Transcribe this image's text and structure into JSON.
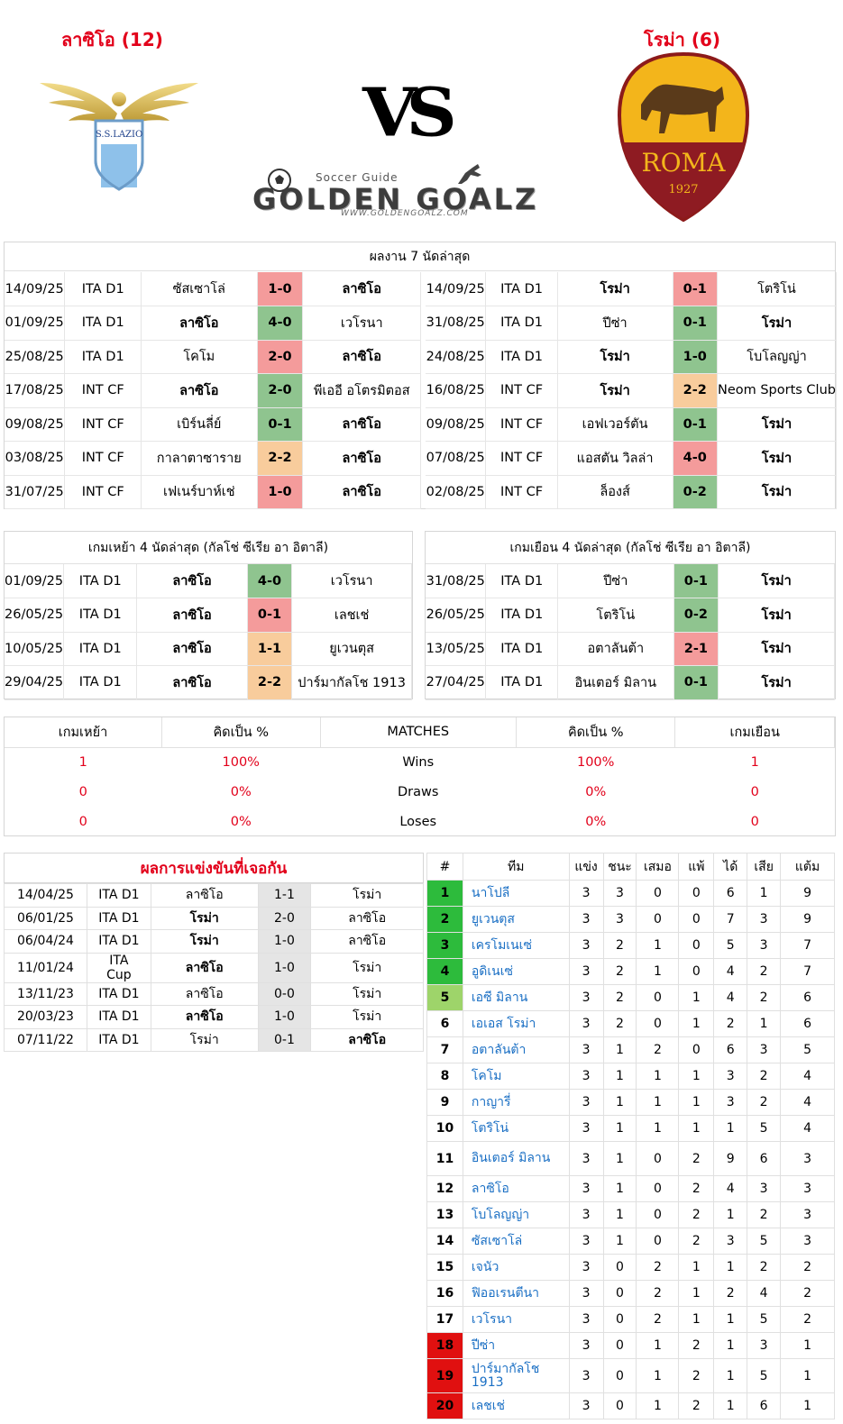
{
  "home": {
    "title": "ลาซิโอ (12)",
    "logo_text": "S.S.LAZIO"
  },
  "away": {
    "title": "โรม่า (6)",
    "logo_text": "ROMA",
    "logo_year": "1927"
  },
  "vs": "VS",
  "brand": {
    "top": "Soccer Guide",
    "main": "GOLDEN GOALZ",
    "url": "WWW.GOLDENGOALZ.COM"
  },
  "last7": {
    "title": "ผลงาน 7 นัดล่าสุด",
    "home_rows": [
      {
        "date": "14/09/25",
        "comp": "ITA D1",
        "home": "ซัสเซาโล่",
        "score": "1-0",
        "away": "ลาซิโอ",
        "res": "L",
        "bold": "away"
      },
      {
        "date": "01/09/25",
        "comp": "ITA D1",
        "home": "ลาซิโอ",
        "score": "4-0",
        "away": "เวโรนา",
        "res": "W",
        "bold": "home"
      },
      {
        "date": "25/08/25",
        "comp": "ITA D1",
        "home": "โคโม",
        "score": "2-0",
        "away": "ลาซิโอ",
        "res": "L",
        "bold": "away"
      },
      {
        "date": "17/08/25",
        "comp": "INT CF",
        "home": "ลาซิโอ",
        "score": "2-0",
        "away": "พีเออี อโตรมิตอส",
        "res": "W",
        "bold": "home"
      },
      {
        "date": "09/08/25",
        "comp": "INT CF",
        "home": "เบิร์นลี่ย์",
        "score": "0-1",
        "away": "ลาซิโอ",
        "res": "W",
        "bold": "away"
      },
      {
        "date": "03/08/25",
        "comp": "INT CF",
        "home": "กาลาตาซาราย",
        "score": "2-2",
        "away": "ลาซิโอ",
        "res": "D",
        "bold": "away"
      },
      {
        "date": "31/07/25",
        "comp": "INT CF",
        "home": "เฟเนร์บาห์เช่",
        "score": "1-0",
        "away": "ลาซิโอ",
        "res": "L",
        "bold": "away"
      }
    ],
    "away_rows": [
      {
        "date": "14/09/25",
        "comp": "ITA D1",
        "home": "โรม่า",
        "score": "0-1",
        "away": "โตริโน่",
        "res": "L",
        "bold": "home"
      },
      {
        "date": "31/08/25",
        "comp": "ITA D1",
        "home": "ปีซ่า",
        "score": "0-1",
        "away": "โรม่า",
        "res": "W",
        "bold": "away"
      },
      {
        "date": "24/08/25",
        "comp": "ITA D1",
        "home": "โรม่า",
        "score": "1-0",
        "away": "โบโลญญ่า",
        "res": "W",
        "bold": "home"
      },
      {
        "date": "16/08/25",
        "comp": "INT CF",
        "home": "โรม่า",
        "score": "2-2",
        "away": "Neom Sports Club",
        "res": "D",
        "bold": "home"
      },
      {
        "date": "09/08/25",
        "comp": "INT CF",
        "home": "เอฟเวอร์ตัน",
        "score": "0-1",
        "away": "โรม่า",
        "res": "W",
        "bold": "away"
      },
      {
        "date": "07/08/25",
        "comp": "INT CF",
        "home": "แอสตัน วิลล่า",
        "score": "4-0",
        "away": "โรม่า",
        "res": "L",
        "bold": "away"
      },
      {
        "date": "02/08/25",
        "comp": "INT CF",
        "home": "ล็องส์",
        "score": "0-2",
        "away": "โรม่า",
        "res": "W",
        "bold": "away"
      }
    ]
  },
  "homeaway": {
    "home_title": "เกมเหย้า 4 นัดล่าสุด (กัลโช่ ซีเรีย อา อิตาลี)",
    "away_title": "เกมเยือน 4 นัดล่าสุด (กัลโช่ ซีเรีย อา อิตาลี)",
    "home_rows": [
      {
        "date": "01/09/25",
        "comp": "ITA D1",
        "home": "ลาซิโอ",
        "score": "4-0",
        "away": "เวโรนา",
        "res": "W",
        "bold": "home"
      },
      {
        "date": "26/05/25",
        "comp": "ITA D1",
        "home": "ลาซิโอ",
        "score": "0-1",
        "away": "เลชเช่",
        "res": "L",
        "bold": "home"
      },
      {
        "date": "10/05/25",
        "comp": "ITA D1",
        "home": "ลาซิโอ",
        "score": "1-1",
        "away": "ยูเวนตุส",
        "res": "D",
        "bold": "home"
      },
      {
        "date": "29/04/25",
        "comp": "ITA D1",
        "home": "ลาซิโอ",
        "score": "2-2",
        "away": "ปาร์มากัลโช 1913",
        "res": "D",
        "bold": "home"
      }
    ],
    "away_rows": [
      {
        "date": "31/08/25",
        "comp": "ITA D1",
        "home": "ปีซ่า",
        "score": "0-1",
        "away": "โรม่า",
        "res": "W",
        "bold": "away"
      },
      {
        "date": "26/05/25",
        "comp": "ITA D1",
        "home": "โตริโน่",
        "score": "0-2",
        "away": "โรม่า",
        "res": "W",
        "bold": "away"
      },
      {
        "date": "13/05/25",
        "comp": "ITA D1",
        "home": "อตาลันต้า",
        "score": "2-1",
        "away": "โรม่า",
        "res": "L",
        "bold": "away"
      },
      {
        "date": "27/04/25",
        "comp": "ITA D1",
        "home": "อินเตอร์ มิลาน",
        "score": "0-1",
        "away": "โรม่า",
        "res": "W",
        "bold": "away"
      }
    ]
  },
  "summary": {
    "headers": [
      "เกมเหย้า",
      "คิดเป็น %",
      "MATCHES",
      "คิดเป็น %",
      "เกมเยือน"
    ],
    "rows": [
      [
        "1",
        "100%",
        "Wins",
        "100%",
        "1"
      ],
      [
        "0",
        "0%",
        "Draws",
        "0%",
        "0"
      ],
      [
        "0",
        "0%",
        "Loses",
        "0%",
        "0"
      ]
    ]
  },
  "h2h": {
    "title": "ผลการแข่งขันที่เจอกัน",
    "rows": [
      {
        "date": "14/04/25",
        "comp": "ITA D1",
        "home": "ลาซิโอ",
        "score": "1-1",
        "away": "โรม่า",
        "bold": ""
      },
      {
        "date": "06/01/25",
        "comp": "ITA D1",
        "home": "โรม่า",
        "score": "2-0",
        "away": "ลาซิโอ",
        "bold": "home"
      },
      {
        "date": "06/04/24",
        "comp": "ITA D1",
        "home": "โรม่า",
        "score": "1-0",
        "away": "ลาซิโอ",
        "bold": "home"
      },
      {
        "date": "11/01/24",
        "comp": "ITA Cup",
        "home": "ลาซิโอ",
        "score": "1-0",
        "away": "โรม่า",
        "bold": "home"
      },
      {
        "date": "13/11/23",
        "comp": "ITA D1",
        "home": "ลาซิโอ",
        "score": "0-0",
        "away": "โรม่า",
        "bold": ""
      },
      {
        "date": "20/03/23",
        "comp": "ITA D1",
        "home": "ลาซิโอ",
        "score": "1-0",
        "away": "โรม่า",
        "bold": "home"
      },
      {
        "date": "07/11/22",
        "comp": "ITA D1",
        "home": "โรม่า",
        "score": "0-1",
        "away": "ลาซิโอ",
        "bold": "away"
      }
    ]
  },
  "table": {
    "headers": [
      "#",
      "ทีม",
      "แข่ง",
      "ชนะ",
      "เสมอ",
      "แพ้",
      "ได้",
      "เสีย",
      "แต้ม"
    ],
    "colors": {
      "ucl": "#2dbb3c",
      "uel": "#9ed46a",
      "rel": "#e01010"
    },
    "rows": [
      {
        "pos": "1",
        "team": "นาโปลี",
        "p": "3",
        "w": "3",
        "d": "0",
        "l": "0",
        "gf": "6",
        "ga": "1",
        "pts": "9",
        "zone": "ucl"
      },
      {
        "pos": "2",
        "team": "ยูเวนตุส",
        "p": "3",
        "w": "3",
        "d": "0",
        "l": "0",
        "gf": "7",
        "ga": "3",
        "pts": "9",
        "zone": "ucl"
      },
      {
        "pos": "3",
        "team": "เครโมเนเซ่",
        "p": "3",
        "w": "2",
        "d": "1",
        "l": "0",
        "gf": "5",
        "ga": "3",
        "pts": "7",
        "zone": "ucl"
      },
      {
        "pos": "4",
        "team": "อูดิเนเซ่",
        "p": "3",
        "w": "2",
        "d": "1",
        "l": "0",
        "gf": "4",
        "ga": "2",
        "pts": "7",
        "zone": "ucl"
      },
      {
        "pos": "5",
        "team": "เอซี มิลาน",
        "p": "3",
        "w": "2",
        "d": "0",
        "l": "1",
        "gf": "4",
        "ga": "2",
        "pts": "6",
        "zone": "uel"
      },
      {
        "pos": "6",
        "team": "เอเอส โรม่า",
        "p": "3",
        "w": "2",
        "d": "0",
        "l": "1",
        "gf": "2",
        "ga": "1",
        "pts": "6",
        "zone": ""
      },
      {
        "pos": "7",
        "team": "อตาลันต้า",
        "p": "3",
        "w": "1",
        "d": "2",
        "l": "0",
        "gf": "6",
        "ga": "3",
        "pts": "5",
        "zone": ""
      },
      {
        "pos": "8",
        "team": "โคโม",
        "p": "3",
        "w": "1",
        "d": "1",
        "l": "1",
        "gf": "3",
        "ga": "2",
        "pts": "4",
        "zone": ""
      },
      {
        "pos": "9",
        "team": "กาญารี่",
        "p": "3",
        "w": "1",
        "d": "1",
        "l": "1",
        "gf": "3",
        "ga": "2",
        "pts": "4",
        "zone": ""
      },
      {
        "pos": "10",
        "team": "โตริโน่",
        "p": "3",
        "w": "1",
        "d": "1",
        "l": "1",
        "gf": "1",
        "ga": "5",
        "pts": "4",
        "zone": ""
      },
      {
        "pos": "11",
        "team": "อินเตอร์ มิลาน",
        "p": "3",
        "w": "1",
        "d": "0",
        "l": "2",
        "gf": "9",
        "ga": "6",
        "pts": "3",
        "zone": ""
      },
      {
        "pos": "12",
        "team": "ลาซิโอ",
        "p": "3",
        "w": "1",
        "d": "0",
        "l": "2",
        "gf": "4",
        "ga": "3",
        "pts": "3",
        "zone": ""
      },
      {
        "pos": "13",
        "team": "โบโลญญ่า",
        "p": "3",
        "w": "1",
        "d": "0",
        "l": "2",
        "gf": "1",
        "ga": "2",
        "pts": "3",
        "zone": ""
      },
      {
        "pos": "14",
        "team": "ซัสเซาโล่",
        "p": "3",
        "w": "1",
        "d": "0",
        "l": "2",
        "gf": "3",
        "ga": "5",
        "pts": "3",
        "zone": ""
      },
      {
        "pos": "15",
        "team": "เจนัว",
        "p": "3",
        "w": "0",
        "d": "2",
        "l": "1",
        "gf": "1",
        "ga": "2",
        "pts": "2",
        "zone": ""
      },
      {
        "pos": "16",
        "team": "ฟิออเรนตีนา",
        "p": "3",
        "w": "0",
        "d": "2",
        "l": "1",
        "gf": "2",
        "ga": "4",
        "pts": "2",
        "zone": ""
      },
      {
        "pos": "17",
        "team": "เวโรนา",
        "p": "3",
        "w": "0",
        "d": "2",
        "l": "1",
        "gf": "1",
        "ga": "5",
        "pts": "2",
        "zone": ""
      },
      {
        "pos": "18",
        "team": "ปีซ่า",
        "p": "3",
        "w": "0",
        "d": "1",
        "l": "2",
        "gf": "1",
        "ga": "3",
        "pts": "1",
        "zone": "rel"
      },
      {
        "pos": "19",
        "team": "ปาร์มากัลโช 1913",
        "p": "3",
        "w": "0",
        "d": "1",
        "l": "2",
        "gf": "1",
        "ga": "5",
        "pts": "1",
        "zone": "rel"
      },
      {
        "pos": "20",
        "team": "เลชเช่",
        "p": "3",
        "w": "0",
        "d": "1",
        "l": "2",
        "gf": "1",
        "ga": "6",
        "pts": "1",
        "zone": "rel"
      }
    ]
  }
}
